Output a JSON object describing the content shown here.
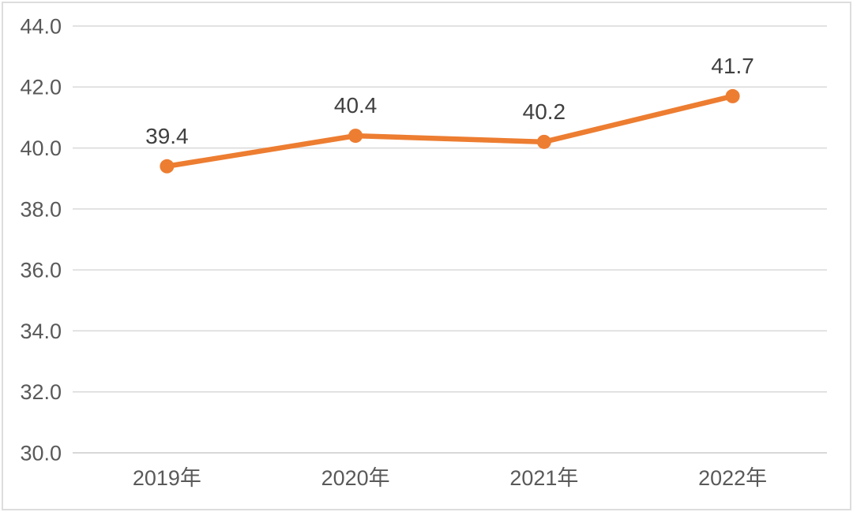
{
  "chart_data": {
    "type": "line",
    "title": "",
    "xlabel": "",
    "ylabel": "",
    "categories": [
      "2019年",
      "2020年",
      "2021年",
      "2022年"
    ],
    "series": [
      {
        "name": "series-1",
        "values": [
          39.4,
          40.4,
          40.2,
          41.7
        ],
        "data_labels": [
          "39.4",
          "40.4",
          "40.2",
          "41.7"
        ]
      }
    ],
    "ylim": [
      30.0,
      44.0
    ],
    "ytick_step": 2.0,
    "ytick_labels": [
      "30.0",
      "32.0",
      "34.0",
      "36.0",
      "38.0",
      "40.0",
      "42.0",
      "44.0"
    ],
    "grid": true,
    "legend_position": "none",
    "marker": "circle",
    "colors": {
      "line": "#ED7D31",
      "marker": "#ED7D31",
      "gridline": "#D9D9D9",
      "axis_line": "#CCCCCC",
      "axis_tick_text": "#595959",
      "data_label_text": "#404040",
      "background": "#FFFFFF",
      "frame_border": "#DDDDDD"
    }
  }
}
